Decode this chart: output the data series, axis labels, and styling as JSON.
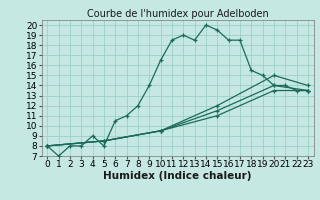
{
  "title": "Courbe de l'humidex pour Adelboden",
  "xlabel": "Humidex (Indice chaleur)",
  "xlim": [
    -0.5,
    23.5
  ],
  "ylim": [
    7,
    20.5
  ],
  "xticks": [
    0,
    1,
    2,
    3,
    4,
    5,
    6,
    7,
    8,
    9,
    10,
    11,
    12,
    13,
    14,
    15,
    16,
    17,
    18,
    19,
    20,
    21,
    22,
    23
  ],
  "yticks": [
    7,
    8,
    9,
    10,
    11,
    12,
    13,
    14,
    15,
    16,
    17,
    18,
    19,
    20
  ],
  "bg_color": "#c5e8e2",
  "grid_color": "#9ecfc7",
  "line_color": "#1a6b5a",
  "lines": [
    {
      "x": [
        0,
        1,
        2,
        3,
        4,
        5,
        6,
        7,
        8,
        9,
        10,
        11,
        12,
        13,
        14,
        15,
        16,
        17,
        18,
        19,
        20,
        21,
        22,
        23
      ],
      "y": [
        8,
        7,
        8,
        8,
        9,
        8,
        10.5,
        11,
        12,
        14,
        16.5,
        18.5,
        19,
        18.5,
        20,
        19.5,
        18.5,
        18.5,
        15.5,
        15,
        14,
        14,
        13.5,
        13.5
      ]
    },
    {
      "x": [
        0,
        5,
        10,
        15,
        20,
        23
      ],
      "y": [
        8,
        8.5,
        9.5,
        11,
        13.5,
        13.5
      ]
    },
    {
      "x": [
        0,
        5,
        10,
        15,
        20,
        23
      ],
      "y": [
        8,
        8.5,
        9.5,
        11.5,
        14,
        13.5
      ]
    },
    {
      "x": [
        0,
        5,
        10,
        15,
        20,
        23
      ],
      "y": [
        8,
        8.5,
        9.5,
        12,
        15,
        14
      ]
    }
  ],
  "tick_fontsize": 6.5,
  "label_fontsize": 7.5,
  "title_fontsize": 7
}
